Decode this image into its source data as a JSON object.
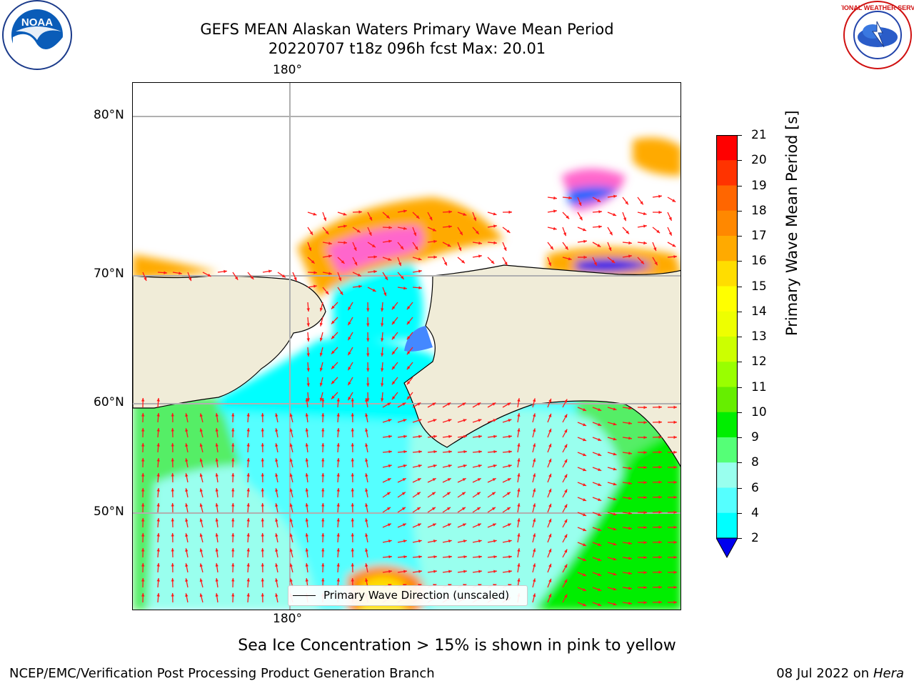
{
  "header": {
    "title_line1": "GEFS MEAN Alaskan Waters Primary Wave Mean Period",
    "title_line2": "20220707 t18z 096h fcst   Max: 20.01"
  },
  "logos": {
    "left": {
      "icon": "noaa-logo",
      "text": "NOAA"
    },
    "right": {
      "icon": "nws-logo",
      "text": "NATIONAL WEATHER SERVICE"
    }
  },
  "map": {
    "lon_top_label": "180°",
    "lon_bottom_label": "180°",
    "lat_labels": [
      "80°N",
      "70°N",
      "60°N",
      "50°N"
    ],
    "land_color": "#f0ecd8",
    "ocean_none_color": "#ffffff",
    "arrow_color": "#ff1a1a"
  },
  "legend": {
    "label": "Primary Wave Direction (unscaled)"
  },
  "colorbar": {
    "label": "Primary Wave Mean Period [s]",
    "ticks": [
      "21",
      "20",
      "19",
      "18",
      "17",
      "16",
      "15",
      "14",
      "13",
      "12",
      "11",
      "10",
      "9",
      "8",
      "6",
      "4",
      "2"
    ],
    "colors": [
      "#ff0000",
      "#ff3300",
      "#ff6600",
      "#ff8800",
      "#ffaa00",
      "#ffdd00",
      "#ffff00",
      "#eeff00",
      "#ccff00",
      "#99ff00",
      "#66ee00",
      "#00ee00",
      "#55ff77",
      "#99ffee",
      "#55ffff",
      "#00ffff",
      "#0088ff"
    ],
    "extend_color": "#0000ee"
  },
  "footer": {
    "sea_ice_note": "Sea Ice Concentration > 15% is shown in pink to yellow",
    "branch": "NCEP/EMC/Verification Post Processing Product Generation Branch",
    "date": "08 Jul 2022",
    "on_word": "on",
    "machine": "Hera"
  }
}
